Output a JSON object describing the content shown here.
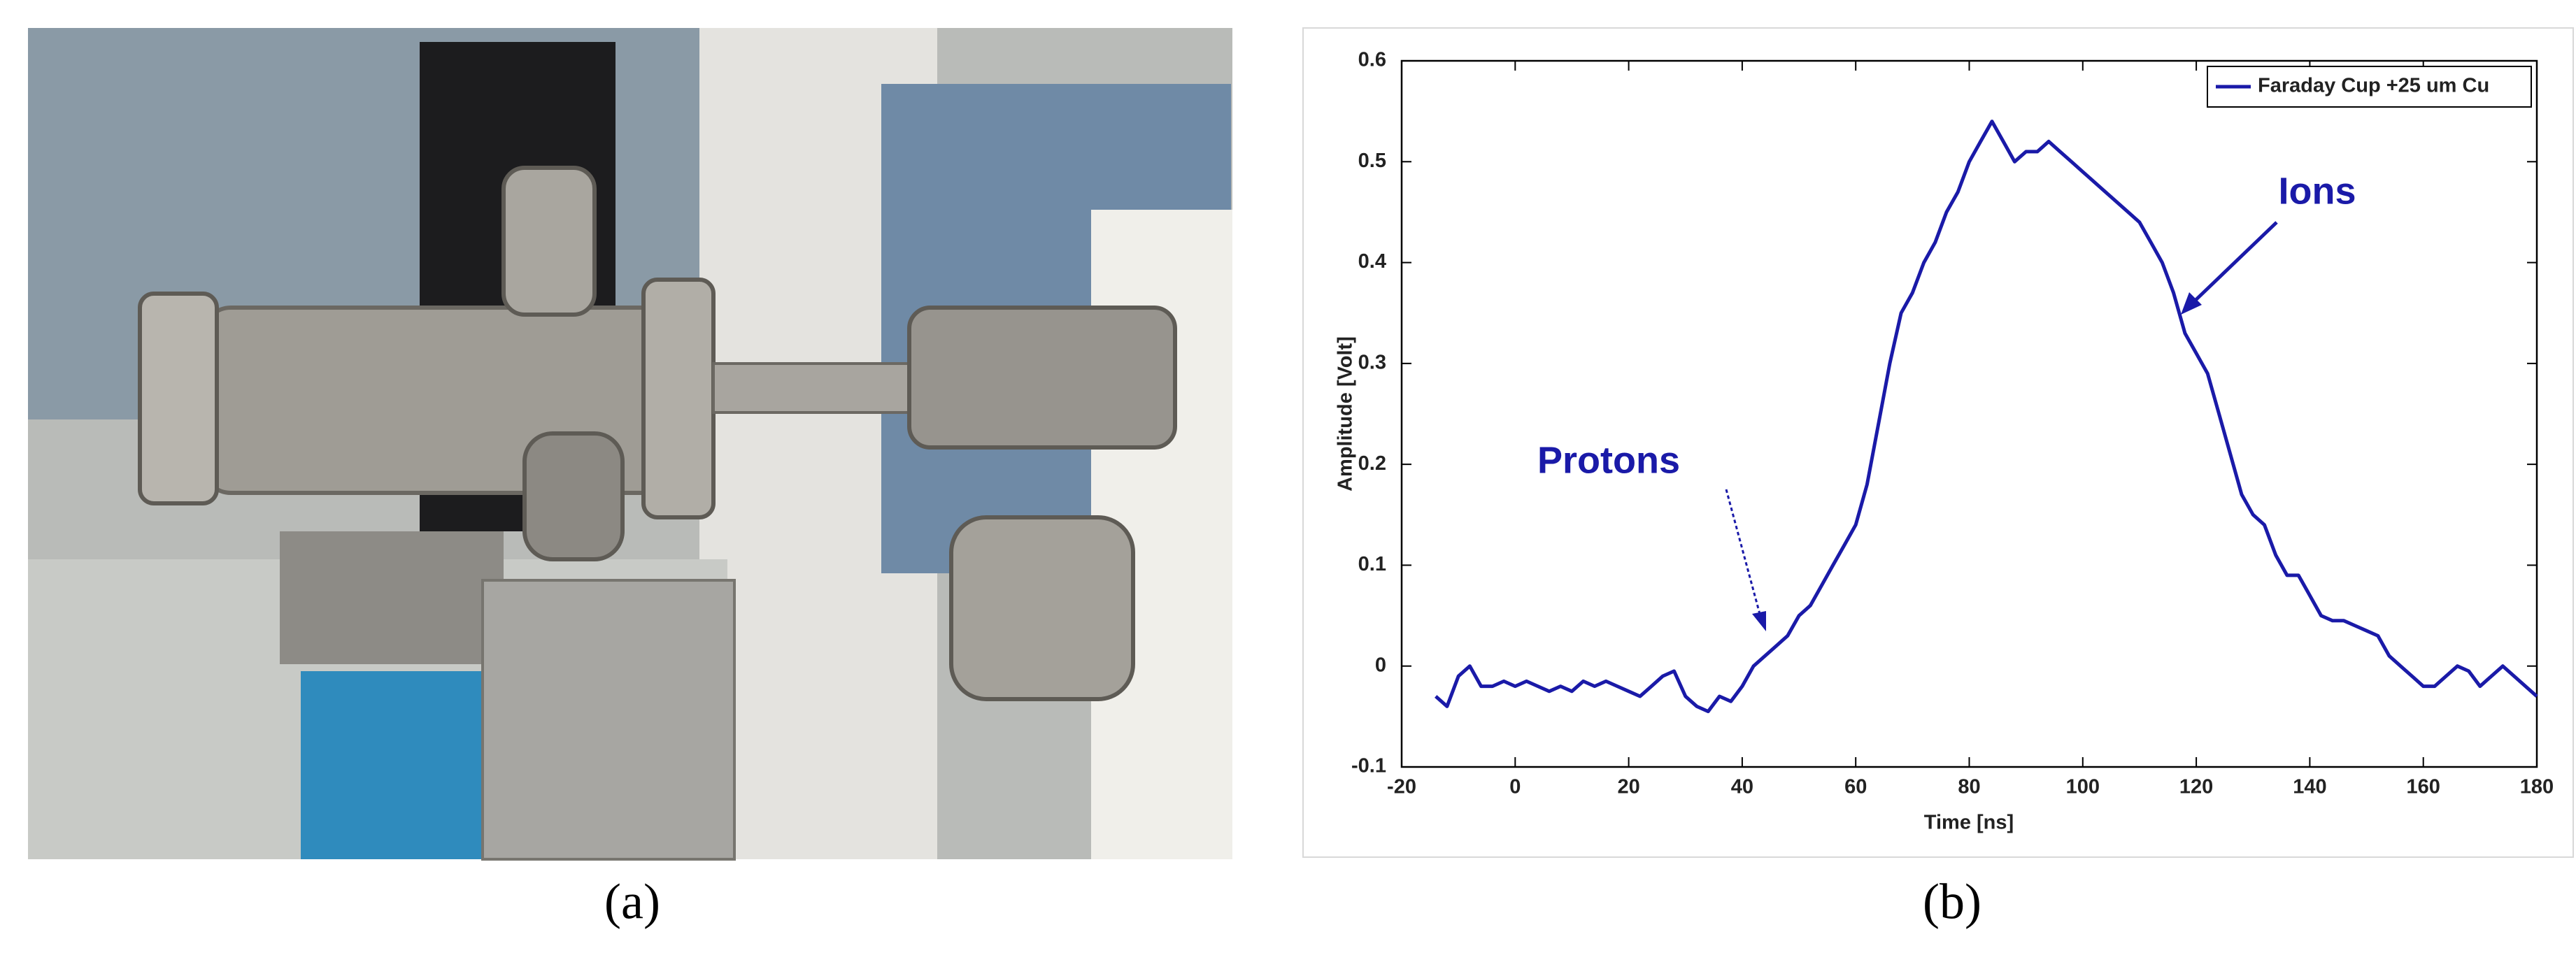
{
  "captions": [
    "(a)",
    "(b)"
  ],
  "chart_data": {
    "type": "line",
    "xlabel": "Time [ns]",
    "ylabel": "Amplitude [Volt]",
    "annotations": [
      "Protons",
      "Ions"
    ],
    "legend": "upper right",
    "grid": false,
    "xlim": [
      -20,
      180
    ],
    "xticks": [
      -20,
      0,
      20,
      40,
      60,
      80,
      100,
      120,
      140,
      160,
      180
    ],
    "ylim": [
      -0.1,
      0.6
    ],
    "yticks": [
      -0.1,
      0,
      0.1,
      0.2,
      0.3,
      0.4,
      0.5,
      0.6
    ],
    "x": [
      -14,
      -12,
      -10,
      -8,
      -6,
      -4,
      -2,
      0,
      2,
      4,
      6,
      8,
      10,
      12,
      14,
      16,
      18,
      20,
      22,
      24,
      26,
      28,
      30,
      32,
      34,
      36,
      38,
      40,
      42,
      44,
      46,
      48,
      50,
      52,
      54,
      56,
      58,
      60,
      62,
      64,
      66,
      68,
      70,
      72,
      74,
      76,
      78,
      80,
      82,
      84,
      86,
      88,
      90,
      92,
      94,
      96,
      98,
      100,
      102,
      104,
      106,
      108,
      110,
      112,
      114,
      116,
      118,
      120,
      122,
      124,
      126,
      128,
      130,
      132,
      134,
      136,
      138,
      140,
      142,
      144,
      146,
      148,
      150,
      152,
      154,
      156,
      158,
      160,
      162,
      164,
      166,
      168,
      170,
      172,
      174,
      176,
      178,
      180
    ],
    "series": [
      {
        "name": "Faraday Cup +25 um Cu",
        "color": "#1a1aa8",
        "values": [
          -0.03,
          -0.04,
          -0.01,
          0.0,
          -0.02,
          -0.02,
          -0.015,
          -0.02,
          -0.015,
          -0.02,
          -0.025,
          -0.02,
          -0.025,
          -0.015,
          -0.02,
          -0.015,
          -0.02,
          -0.025,
          -0.03,
          -0.02,
          -0.01,
          -0.005,
          -0.03,
          -0.04,
          -0.045,
          -0.03,
          -0.035,
          -0.02,
          0.0,
          0.01,
          0.02,
          0.03,
          0.05,
          0.06,
          0.08,
          0.1,
          0.12,
          0.14,
          0.18,
          0.24,
          0.3,
          0.35,
          0.37,
          0.4,
          0.42,
          0.45,
          0.47,
          0.5,
          0.52,
          0.54,
          0.52,
          0.5,
          0.51,
          0.51,
          0.52,
          0.51,
          0.5,
          0.49,
          0.48,
          0.47,
          0.46,
          0.45,
          0.44,
          0.42,
          0.4,
          0.37,
          0.33,
          0.31,
          0.29,
          0.25,
          0.21,
          0.17,
          0.15,
          0.14,
          0.11,
          0.09,
          0.09,
          0.07,
          0.05,
          0.045,
          0.045,
          0.04,
          0.035,
          0.03,
          0.01,
          0.0,
          -0.01,
          -0.02,
          -0.02,
          -0.01,
          0.0,
          -0.005,
          -0.02,
          -0.01,
          0.0,
          -0.01,
          -0.02,
          -0.03
        ]
      }
    ]
  }
}
